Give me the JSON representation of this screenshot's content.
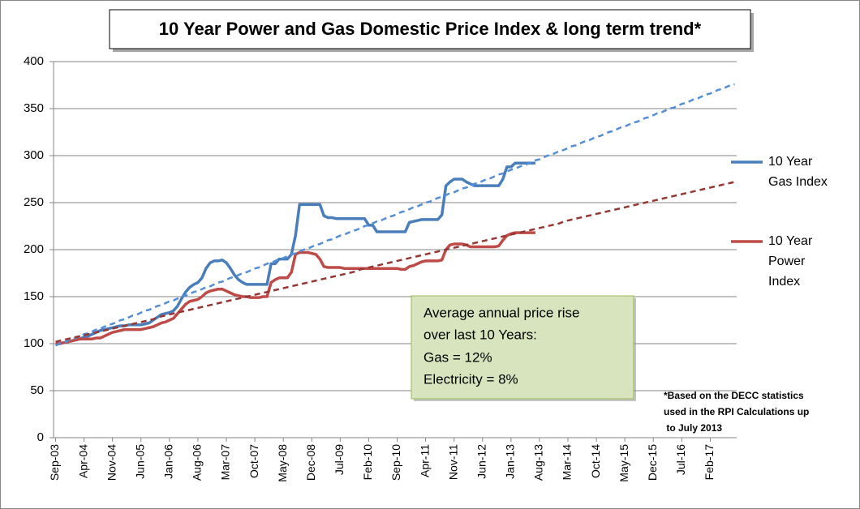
{
  "chart_data": {
    "type": "line",
    "title": "10 Year Power and Gas Domestic Price Index & long term trend*",
    "annotation": [
      "Average annual price rise",
      "over last 10 Years:",
      "Gas = 12%",
      "Electricity = 8%"
    ],
    "footnote": [
      "*Based on the DECC statistics",
      "used in the RPI Calculations up",
      " to July 2013"
    ],
    "ylim": [
      0,
      400
    ],
    "yticks": [
      0,
      50,
      100,
      150,
      200,
      250,
      300,
      350,
      400
    ],
    "grid": true,
    "legend": "right",
    "categories": [
      "Sep-03",
      null,
      null,
      null,
      null,
      null,
      null,
      "Apr-04",
      null,
      null,
      null,
      null,
      null,
      null,
      "Nov-04",
      null,
      null,
      null,
      null,
      null,
      null,
      "Jun-05",
      null,
      null,
      null,
      null,
      null,
      null,
      "Jan-06",
      null,
      null,
      null,
      null,
      null,
      null,
      "Aug-06",
      null,
      null,
      null,
      null,
      null,
      null,
      "Mar-07",
      null,
      null,
      null,
      null,
      null,
      null,
      "Oct-07",
      null,
      null,
      null,
      null,
      null,
      null,
      "May-08",
      null,
      null,
      null,
      null,
      null,
      null,
      "Dec-08",
      null,
      null,
      null,
      null,
      null,
      null,
      "Jul-09",
      null,
      null,
      null,
      null,
      null,
      null,
      "Feb-10",
      null,
      null,
      null,
      null,
      null,
      null,
      "Sep-10",
      null,
      null,
      null,
      null,
      null,
      null,
      "Apr-11",
      null,
      null,
      null,
      null,
      null,
      null,
      "Nov-11",
      null,
      null,
      null,
      null,
      null,
      null,
      "Jun-12",
      null,
      null,
      null,
      null,
      null,
      null,
      "Jan-13",
      null,
      null,
      null,
      null,
      null,
      null,
      "Aug-13",
      null,
      null,
      null,
      null,
      null,
      null,
      "Mar-14",
      null,
      null,
      null,
      null,
      null,
      null,
      "Oct-14",
      null,
      null,
      null,
      null,
      null,
      null,
      "May-15",
      null,
      null,
      null,
      null,
      null,
      null,
      "Dec-15",
      null,
      null,
      null,
      null,
      null,
      null,
      "Jul-16",
      null,
      null,
      null,
      null,
      null,
      null,
      "Feb-17",
      null,
      null,
      null,
      null,
      null,
      null
    ],
    "series": [
      {
        "name": "10 Year Gas Index",
        "color": "#4a7ebb",
        "values": [
          100,
          100,
          101,
          102,
          103,
          104,
          105,
          107,
          108,
          110,
          112,
          114,
          115,
          116,
          117,
          118,
          119,
          119,
          120,
          120,
          120,
          120,
          121,
          122,
          125,
          128,
          131,
          132,
          133,
          135,
          140,
          148,
          155,
          160,
          163,
          165,
          170,
          180,
          186,
          188,
          188,
          189,
          186,
          180,
          173,
          168,
          165,
          163,
          163,
          163,
          163,
          163,
          163,
          185,
          185,
          190,
          190,
          190,
          195,
          215,
          248,
          248,
          248,
          248,
          248,
          248,
          236,
          234,
          234,
          233,
          233,
          233,
          233,
          233,
          233,
          233,
          233,
          226,
          226,
          219,
          219,
          219,
          219,
          219,
          219,
          219,
          219,
          229,
          230,
          231,
          232,
          232,
          232,
          232,
          232,
          237,
          268,
          272,
          275,
          275,
          275,
          272,
          270,
          268,
          268,
          268,
          268,
          268,
          268,
          268,
          275,
          288,
          288,
          292,
          292,
          292,
          292,
          292,
          292,
          null,
          null,
          null,
          null,
          null,
          null,
          null,
          null,
          null,
          null,
          null,
          null,
          null,
          null,
          null,
          null,
          null,
          null,
          null,
          null,
          null,
          null,
          null,
          null,
          null,
          null,
          null,
          null,
          null,
          null,
          null,
          null,
          null,
          null,
          null,
          null,
          null,
          null,
          null,
          null,
          null,
          null,
          null,
          null,
          null,
          null,
          null,
          null,
          null
        ]
      },
      {
        "name": "10 Year Power Index",
        "color": "#be4b48",
        "values": [
          100,
          100,
          101,
          102,
          103,
          104,
          105,
          105,
          105,
          105,
          106,
          106,
          108,
          110,
          112,
          113,
          114,
          115,
          115,
          115,
          115,
          115,
          116,
          117,
          118,
          120,
          122,
          123,
          125,
          127,
          132,
          137,
          142,
          145,
          146,
          147,
          150,
          154,
          156,
          157,
          158,
          158,
          156,
          154,
          152,
          151,
          150,
          150,
          149,
          149,
          149,
          150,
          150,
          165,
          168,
          170,
          170,
          170,
          176,
          195,
          197,
          197,
          197,
          196,
          195,
          190,
          182,
          181,
          181,
          181,
          181,
          180,
          180,
          180,
          180,
          180,
          180,
          180,
          180,
          180,
          180,
          180,
          180,
          180,
          180,
          179,
          179,
          182,
          183,
          185,
          187,
          188,
          188,
          188,
          188,
          189,
          200,
          205,
          206,
          206,
          206,
          205,
          203,
          203,
          203,
          203,
          203,
          203,
          203,
          204,
          210,
          215,
          217,
          218,
          218,
          218,
          218,
          218,
          218,
          null,
          null,
          null,
          null,
          null,
          null,
          null,
          null,
          null,
          null,
          null,
          null,
          null,
          null,
          null,
          null,
          null,
          null,
          null,
          null,
          null,
          null,
          null,
          null,
          null,
          null,
          null,
          null,
          null,
          null,
          null,
          null,
          null,
          null,
          null,
          null,
          null,
          null,
          null,
          null,
          null,
          null,
          null,
          null,
          null,
          null,
          null,
          null,
          null
        ]
      },
      {
        "color": "#558ed5",
        "dashed": true,
        "values": [
          98,
          100,
          101,
          103,
          105,
          106,
          108,
          110,
          111,
          113,
          115,
          116,
          118,
          120,
          121,
          123,
          125,
          126,
          128,
          130,
          131,
          133,
          135,
          136,
          138,
          140,
          141,
          143,
          145,
          146,
          148,
          150,
          151,
          153,
          155,
          156,
          158,
          160,
          161,
          163,
          165,
          166,
          168,
          170,
          171,
          173,
          175,
          176,
          178,
          180,
          181,
          183,
          185,
          186,
          188,
          190,
          191,
          193,
          195,
          196,
          198,
          200,
          201,
          203,
          205,
          206,
          208,
          210,
          211,
          213,
          215,
          216,
          218,
          220,
          221,
          223,
          225,
          226,
          228,
          230,
          231,
          233,
          235,
          236,
          238,
          240,
          241,
          243,
          245,
          246,
          248,
          250,
          251,
          253,
          255,
          256,
          258,
          260,
          261,
          263,
          265,
          266,
          268,
          270,
          271,
          273,
          275,
          276,
          278,
          280,
          281,
          283,
          285,
          286,
          288,
          290,
          291,
          293,
          295,
          296,
          298,
          300,
          301,
          303,
          305,
          306,
          308,
          310,
          311,
          313,
          315,
          316,
          318,
          320,
          321,
          323,
          325,
          326,
          328,
          330,
          331,
          333,
          335,
          336,
          338,
          340,
          341,
          343,
          345,
          346,
          348,
          350,
          351,
          353,
          355,
          356,
          358,
          360,
          361,
          363,
          365,
          366,
          368,
          370,
          371,
          373,
          375,
          376
        ]
      },
      {
        "color": "#953735",
        "dashed": true,
        "values": [
          102,
          103,
          104,
          105,
          106,
          107,
          108,
          109,
          110,
          111,
          112,
          113,
          114,
          115,
          116,
          117,
          118,
          119,
          120,
          121,
          122,
          123,
          124,
          125,
          126,
          128,
          129,
          130,
          131,
          132,
          133,
          134,
          135,
          136,
          137,
          138,
          139,
          140,
          141,
          142,
          143,
          144,
          145,
          146,
          147,
          148,
          149,
          150,
          151,
          152,
          153,
          154,
          155,
          156,
          157,
          158,
          159,
          160,
          161,
          162,
          163,
          164,
          165,
          166,
          167,
          168,
          169,
          170,
          171,
          172,
          173,
          174,
          175,
          176,
          177,
          179,
          180,
          181,
          182,
          183,
          184,
          185,
          186,
          187,
          188,
          189,
          190,
          191,
          192,
          193,
          194,
          195,
          196,
          197,
          198,
          199,
          200,
          201,
          202,
          203,
          204,
          205,
          206,
          207,
          208,
          209,
          210,
          211,
          212,
          213,
          214,
          215,
          216,
          217,
          218,
          219,
          220,
          221,
          222,
          223,
          224,
          225,
          226,
          227,
          228,
          230,
          231,
          232,
          233,
          234,
          235,
          236,
          237,
          238,
          239,
          240,
          241,
          242,
          243,
          244,
          245,
          246,
          247,
          248,
          249,
          250,
          251,
          252,
          253,
          254,
          255,
          256,
          257,
          258,
          259,
          260,
          261,
          262,
          263,
          264,
          265,
          266,
          267,
          268,
          269,
          270,
          271,
          272
        ]
      }
    ]
  }
}
